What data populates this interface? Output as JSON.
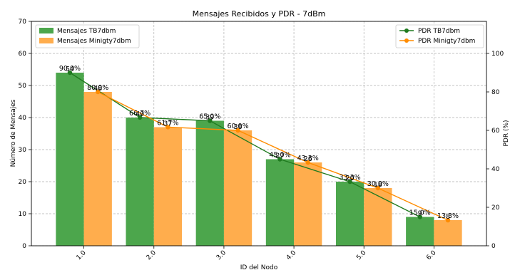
{
  "chart_data": {
    "type": "bar",
    "title": "Mensajes Recibidos y PDR - 7dBm",
    "xlabel": "ID del Nodo",
    "ylabel": "Número de Mensajes",
    "y2label": "PDR (%)",
    "categories": [
      "1.0",
      "2.0",
      "3.0",
      "4.0",
      "5.0",
      "6.0"
    ],
    "ylim": [
      0,
      70
    ],
    "y2lim": [
      0,
      116.67
    ],
    "yticks": [
      0,
      10,
      20,
      30,
      40,
      50,
      60,
      70
    ],
    "y2ticks": [
      0,
      20,
      40,
      60,
      80,
      100
    ],
    "grid": true,
    "series": [
      {
        "name": "Mensajes TB7dbm",
        "type": "bar",
        "axis": "left",
        "color": "#4ca64c",
        "values": [
          54,
          40,
          39,
          27,
          20,
          9
        ],
        "labels": [
          "54",
          "40",
          "39",
          "27",
          "20",
          "9"
        ]
      },
      {
        "name": "Mensajes Minigty7dbm",
        "type": "bar",
        "axis": "left",
        "color": "#ffad4d",
        "values": [
          48,
          37,
          36,
          26,
          18,
          8
        ],
        "labels": [
          "48",
          "37",
          "36",
          "26",
          "18",
          "8"
        ]
      },
      {
        "name": "PDR TB7dbm",
        "type": "line",
        "axis": "right",
        "color": "#1f7a1f",
        "values": [
          90.0,
          66.7,
          65.0,
          45.0,
          33.3,
          15.0
        ],
        "labels": [
          "90.0%",
          "66.7%",
          "65.0%",
          "45.0%",
          "33.3%",
          "15.0%"
        ]
      },
      {
        "name": "PDR Minigty7dbm",
        "type": "line",
        "axis": "right",
        "color": "#ff8c00",
        "values": [
          80.0,
          61.7,
          60.0,
          43.3,
          30.0,
          13.3
        ],
        "labels": [
          "80.0%",
          "61.7%",
          "60.0%",
          "43.3%",
          "30.0%",
          "13.3%"
        ]
      }
    ],
    "legend_left_position": "upper-left",
    "legend_right_position": "upper-right"
  }
}
